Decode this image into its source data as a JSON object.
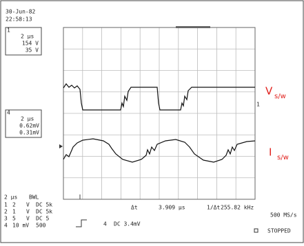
{
  "header": {
    "date": "30-Jun-82",
    "time": "22:58:13"
  },
  "channel_boxes": [
    {
      "number": "1",
      "lines": [
        "2 µs",
        "154 V",
        "35 V"
      ]
    },
    {
      "number": "4",
      "lines": [
        "2 µs",
        "0.62mV",
        "0.31mV"
      ]
    }
  ],
  "trace_labels": [
    {
      "main": "V",
      "sub": "s/w"
    },
    {
      "main": "I",
      "sub": "s/w"
    }
  ],
  "markers": {
    "ch1": "1"
  },
  "footer": {
    "timebase": "2 µs",
    "bandwidth": "BWL",
    "channels": [
      [
        "1",
        "2",
        "V",
        "DC 5k"
      ],
      [
        "2",
        "1",
        "V",
        "DC 5k"
      ],
      [
        "3",
        "5",
        "V",
        "DC 5"
      ],
      [
        "4",
        "10 mV",
        "",
        "500"
      ]
    ],
    "delta_t_label": "Δt",
    "delta_t": "3.909 µs",
    "inv_label": "1/Δt",
    "frequency": "255.82 kHz",
    "sample_rate": "500 MS/s",
    "trigger_channel": "4",
    "trigger": "DC 3.4mV",
    "status": "STOPPED"
  }
}
